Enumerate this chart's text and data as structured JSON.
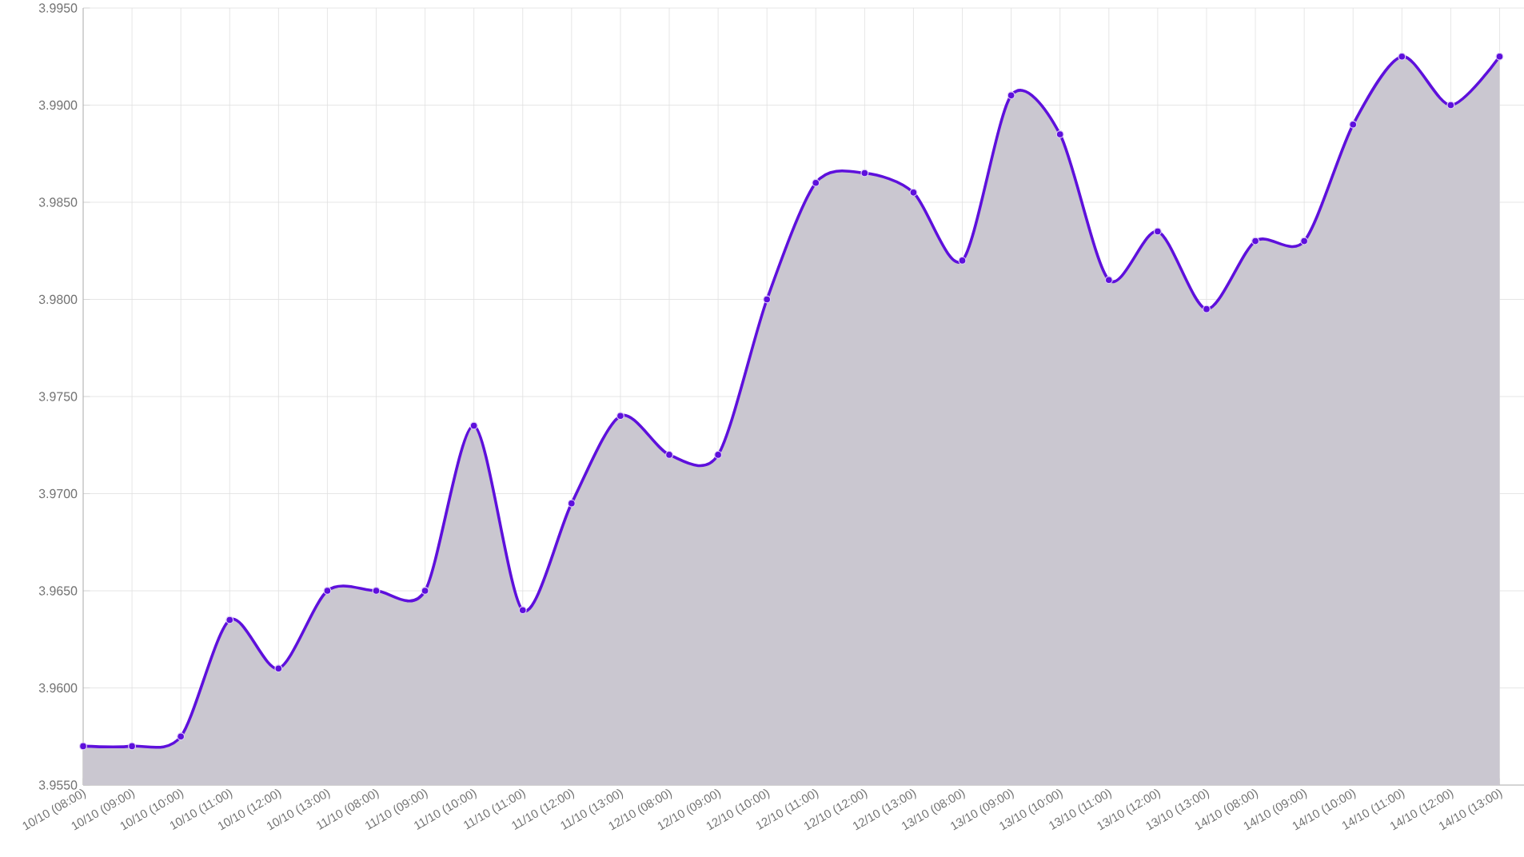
{
  "chart_data": {
    "type": "area",
    "categories": [
      "10/10 (08:00)",
      "10/10 (09:00)",
      "10/10 (10:00)",
      "10/10 (11:00)",
      "10/10 (12:00)",
      "10/10 (13:00)",
      "11/10 (08:00)",
      "11/10 (09:00)",
      "11/10 (10:00)",
      "11/10 (11:00)",
      "11/10 (12:00)",
      "11/10 (13:00)",
      "12/10 (08:00)",
      "12/10 (09:00)",
      "12/10 (10:00)",
      "12/10 (11:00)",
      "12/10 (12:00)",
      "12/10 (13:00)",
      "13/10 (08:00)",
      "13/10 (09:00)",
      "13/10 (10:00)",
      "13/10 (11:00)",
      "13/10 (12:00)",
      "13/10 (13:00)",
      "14/10 (08:00)",
      "14/10 (09:00)",
      "14/10 (10:00)",
      "14/10 (11:00)",
      "14/10 (12:00)",
      "14/10 (13:00)"
    ],
    "series": [
      {
        "color": "#5e10dc",
        "values": [
          3.957,
          3.957,
          3.9575,
          3.9635,
          3.961,
          3.965,
          3.965,
          3.965,
          3.9735,
          3.964,
          3.9695,
          3.974,
          3.972,
          3.972,
          3.98,
          3.986,
          3.9865,
          3.9855,
          3.982,
          3.9905,
          3.9885,
          3.981,
          3.9835,
          3.9795,
          3.983,
          3.983,
          3.989,
          3.9925,
          3.99,
          3.9925
        ]
      }
    ],
    "ylim": [
      3.955,
      3.995
    ],
    "yticks": [
      {
        "value": 3.955,
        "label": "3.9550"
      },
      {
        "value": 3.96,
        "label": "3.9600"
      },
      {
        "value": 3.965,
        "label": "3.9650"
      },
      {
        "value": 3.97,
        "label": "3.9700"
      },
      {
        "value": 3.975,
        "label": "3.9750"
      },
      {
        "value": 3.98,
        "label": "3.9800"
      },
      {
        "value": 3.985,
        "label": "3.9850"
      },
      {
        "value": 3.99,
        "label": "3.9900"
      },
      {
        "value": 3.995,
        "label": "3.9950"
      }
    ],
    "grid": true,
    "marker": "circle",
    "line_style": "solid"
  }
}
